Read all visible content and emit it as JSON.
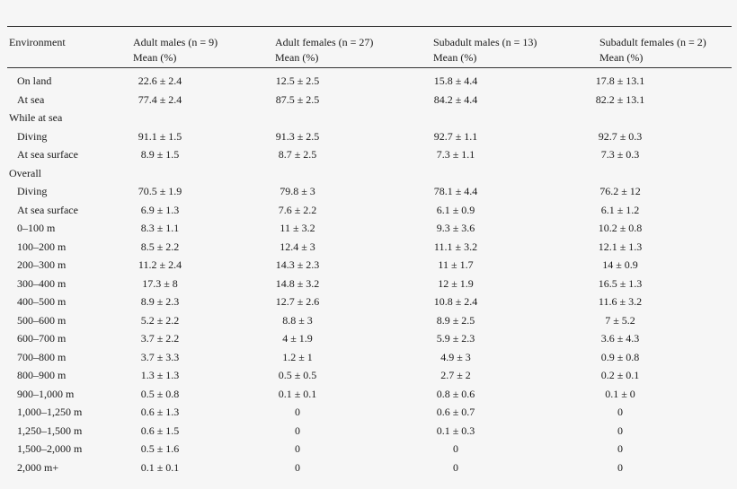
{
  "table": {
    "headers": [
      {
        "line1": "Environment",
        "line2": ""
      },
      {
        "line1": "Adult males (n = 9)",
        "line2": "Mean (%)"
      },
      {
        "line1": "Adult females (n = 27)",
        "line2": "Mean (%)"
      },
      {
        "line1": "Subadult males (n = 13)",
        "line2": "Mean (%)"
      },
      {
        "line1": "Subadult females (n = 2)",
        "line2": "Mean (%)"
      }
    ],
    "rows": [
      {
        "label": "On land",
        "section": false,
        "values": [
          "22.6 ± 2.4",
          "12.5 ± 2.5",
          "15.8 ± 4.4",
          "17.8 ± 13.1"
        ]
      },
      {
        "label": "At sea",
        "section": false,
        "values": [
          "77.4 ± 2.4",
          "87.5 ± 2.5",
          "84.2 ± 4.4",
          "82.2 ± 13.1"
        ]
      },
      {
        "label": "While at sea",
        "section": true,
        "values": [
          "",
          "",
          "",
          ""
        ]
      },
      {
        "label": "Diving",
        "section": false,
        "values": [
          "91.1 ± 1.5",
          "91.3 ± 2.5",
          "92.7 ± 1.1",
          "92.7 ± 0.3"
        ]
      },
      {
        "label": "At sea surface",
        "section": false,
        "values": [
          "8.9 ± 1.5",
          "8.7 ± 2.5",
          "7.3 ± 1.1",
          "7.3 ± 0.3"
        ]
      },
      {
        "label": "Overall",
        "section": true,
        "values": [
          "",
          "",
          "",
          ""
        ]
      },
      {
        "label": "Diving",
        "section": false,
        "values": [
          "70.5 ± 1.9",
          "79.8 ± 3",
          "78.1 ± 4.4",
          "76.2 ± 12"
        ]
      },
      {
        "label": "At sea surface",
        "section": false,
        "values": [
          "6.9 ± 1.3",
          "7.6 ± 2.2",
          "6.1 ± 0.9",
          "6.1 ± 1.2"
        ]
      },
      {
        "label": "0–100 m",
        "section": false,
        "values": [
          "8.3 ± 1.1",
          "11 ± 3.2",
          "9.3 ± 3.6",
          "10.2 ± 0.8"
        ]
      },
      {
        "label": "100–200 m",
        "section": false,
        "values": [
          "8.5 ± 2.2",
          "12.4 ± 3",
          "11.1 ± 3.2",
          "12.1 ± 1.3"
        ]
      },
      {
        "label": "200–300 m",
        "section": false,
        "values": [
          "11.2 ± 2.4",
          "14.3 ± 2.3",
          "11 ± 1.7",
          "14 ± 0.9"
        ]
      },
      {
        "label": "300–400 m",
        "section": false,
        "values": [
          "17.3 ± 8",
          "14.8 ± 3.2",
          "12 ± 1.9",
          "16.5 ± 1.3"
        ]
      },
      {
        "label": "400–500 m",
        "section": false,
        "values": [
          "8.9 ± 2.3",
          "12.7 ± 2.6",
          "10.8 ± 2.4",
          "11.6 ± 3.2"
        ]
      },
      {
        "label": "500–600 m",
        "section": false,
        "values": [
          "5.2 ± 2.2",
          "8.8 ± 3",
          "8.9 ± 2.5",
          "7 ± 5.2"
        ]
      },
      {
        "label": "600–700 m",
        "section": false,
        "values": [
          "3.7 ± 2.2",
          "4 ± 1.9",
          "5.9 ± 2.3",
          "3.6 ± 4.3"
        ]
      },
      {
        "label": "700–800 m",
        "section": false,
        "values": [
          "3.7 ± 3.3",
          "1.2 ± 1",
          "4.9 ± 3",
          "0.9 ± 0.8"
        ]
      },
      {
        "label": "800–900 m",
        "section": false,
        "values": [
          "1.3 ± 1.3",
          "0.5 ± 0.5",
          "2.7 ± 2",
          "0.2 ± 0.1"
        ]
      },
      {
        "label": "900–1,000 m",
        "section": false,
        "values": [
          "0.5 ± 0.8",
          "0.1 ± 0.1",
          "0.8 ± 0.6",
          "0.1 ± 0"
        ]
      },
      {
        "label": "1,000–1,250 m",
        "section": false,
        "values": [
          "0.6 ± 1.3",
          "0",
          "0.6 ± 0.7",
          "0"
        ]
      },
      {
        "label": "1,250–1,500 m",
        "section": false,
        "values": [
          "0.6 ± 1.5",
          "0",
          "0.1 ± 0.3",
          "0"
        ]
      },
      {
        "label": "1,500–2,000 m",
        "section": false,
        "values": [
          "0.5 ± 1.6",
          "0",
          "0",
          "0"
        ]
      },
      {
        "label": "2,000 m+",
        "section": false,
        "values": [
          "0.1 ± 0.1",
          "0",
          "0",
          "0"
        ]
      }
    ]
  }
}
